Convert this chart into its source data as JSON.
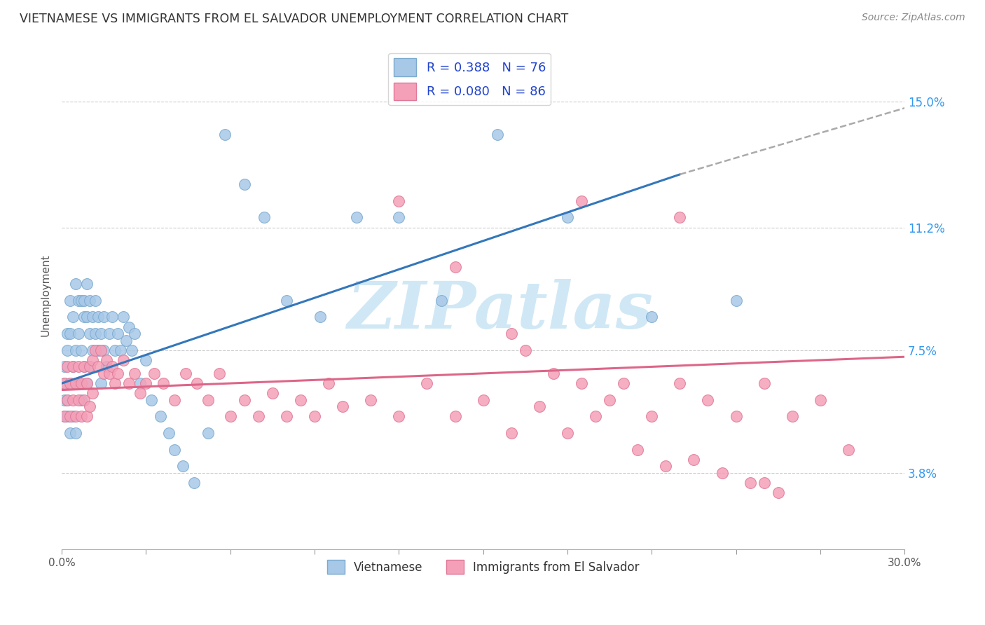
{
  "title": "VIETNAMESE VS IMMIGRANTS FROM EL SALVADOR UNEMPLOYMENT CORRELATION CHART",
  "source": "Source: ZipAtlas.com",
  "ylabel": "Unemployment",
  "ytick_labels": [
    "15.0%",
    "11.2%",
    "7.5%",
    "3.8%"
  ],
  "ytick_values": [
    0.15,
    0.112,
    0.075,
    0.038
  ],
  "xlim": [
    0.0,
    0.3
  ],
  "ylim": [
    0.015,
    0.168
  ],
  "legend_label1": "Vietnamese",
  "legend_label2": "Immigrants from El Salvador",
  "blue_color": "#a8c8e8",
  "pink_color": "#f4a0b8",
  "blue_edge_color": "#7aaace",
  "pink_edge_color": "#e07898",
  "blue_line_color": "#3377bb",
  "pink_line_color": "#dd6688",
  "trend_line_ext_color": "#aaaaaa",
  "watermark": "ZIPatlas",
  "watermark_color": "#d0e8f5",
  "grid_color": "#cccccc",
  "blue_R": 0.388,
  "blue_N": 76,
  "pink_R": 0.08,
  "pink_N": 86,
  "blue_line_x0": 0.0,
  "blue_line_y0": 0.065,
  "blue_line_x1": 0.22,
  "blue_line_y1": 0.128,
  "blue_line_ext_x1": 0.3,
  "blue_line_ext_y1": 0.148,
  "pink_line_x0": 0.0,
  "pink_line_y0": 0.063,
  "pink_line_x1": 0.3,
  "pink_line_y1": 0.073,
  "blue_points_x": [
    0.001,
    0.001,
    0.001,
    0.001,
    0.002,
    0.002,
    0.002,
    0.002,
    0.003,
    0.003,
    0.003,
    0.003,
    0.004,
    0.004,
    0.004,
    0.005,
    0.005,
    0.005,
    0.005,
    0.006,
    0.006,
    0.006,
    0.007,
    0.007,
    0.007,
    0.008,
    0.008,
    0.008,
    0.009,
    0.009,
    0.009,
    0.01,
    0.01,
    0.01,
    0.011,
    0.011,
    0.012,
    0.012,
    0.013,
    0.013,
    0.014,
    0.014,
    0.015,
    0.015,
    0.016,
    0.017,
    0.018,
    0.019,
    0.02,
    0.021,
    0.022,
    0.023,
    0.024,
    0.025,
    0.026,
    0.028,
    0.03,
    0.032,
    0.035,
    0.038,
    0.04,
    0.043,
    0.047,
    0.052,
    0.058,
    0.065,
    0.072,
    0.08,
    0.092,
    0.105,
    0.12,
    0.135,
    0.155,
    0.18,
    0.21,
    0.24
  ],
  "blue_points_y": [
    0.06,
    0.07,
    0.055,
    0.065,
    0.06,
    0.075,
    0.055,
    0.08,
    0.065,
    0.05,
    0.09,
    0.08,
    0.07,
    0.085,
    0.055,
    0.065,
    0.095,
    0.075,
    0.05,
    0.09,
    0.08,
    0.065,
    0.09,
    0.075,
    0.06,
    0.085,
    0.09,
    0.07,
    0.085,
    0.095,
    0.065,
    0.08,
    0.09,
    0.07,
    0.085,
    0.075,
    0.09,
    0.08,
    0.085,
    0.075,
    0.08,
    0.065,
    0.075,
    0.085,
    0.07,
    0.08,
    0.085,
    0.075,
    0.08,
    0.075,
    0.085,
    0.078,
    0.082,
    0.075,
    0.08,
    0.065,
    0.072,
    0.06,
    0.055,
    0.05,
    0.045,
    0.04,
    0.035,
    0.05,
    0.14,
    0.125,
    0.115,
    0.09,
    0.085,
    0.115,
    0.115,
    0.09,
    0.14,
    0.115,
    0.085,
    0.09
  ],
  "pink_points_x": [
    0.001,
    0.001,
    0.002,
    0.002,
    0.003,
    0.003,
    0.004,
    0.004,
    0.005,
    0.005,
    0.006,
    0.006,
    0.007,
    0.007,
    0.008,
    0.008,
    0.009,
    0.009,
    0.01,
    0.01,
    0.011,
    0.011,
    0.012,
    0.013,
    0.014,
    0.015,
    0.016,
    0.017,
    0.018,
    0.019,
    0.02,
    0.022,
    0.024,
    0.026,
    0.028,
    0.03,
    0.033,
    0.036,
    0.04,
    0.044,
    0.048,
    0.052,
    0.056,
    0.06,
    0.065,
    0.07,
    0.075,
    0.08,
    0.085,
    0.09,
    0.095,
    0.1,
    0.11,
    0.12,
    0.13,
    0.14,
    0.15,
    0.16,
    0.17,
    0.18,
    0.19,
    0.2,
    0.21,
    0.22,
    0.23,
    0.24,
    0.25,
    0.26,
    0.27,
    0.28,
    0.165,
    0.175,
    0.185,
    0.195,
    0.205,
    0.215,
    0.225,
    0.235,
    0.245,
    0.255,
    0.12,
    0.14,
    0.16,
    0.185,
    0.22,
    0.25
  ],
  "pink_points_y": [
    0.065,
    0.055,
    0.06,
    0.07,
    0.065,
    0.055,
    0.07,
    0.06,
    0.065,
    0.055,
    0.07,
    0.06,
    0.065,
    0.055,
    0.07,
    0.06,
    0.065,
    0.055,
    0.07,
    0.058,
    0.072,
    0.062,
    0.075,
    0.07,
    0.075,
    0.068,
    0.072,
    0.068,
    0.07,
    0.065,
    0.068,
    0.072,
    0.065,
    0.068,
    0.062,
    0.065,
    0.068,
    0.065,
    0.06,
    0.068,
    0.065,
    0.06,
    0.068,
    0.055,
    0.06,
    0.055,
    0.062,
    0.055,
    0.06,
    0.055,
    0.065,
    0.058,
    0.06,
    0.055,
    0.065,
    0.055,
    0.06,
    0.05,
    0.058,
    0.05,
    0.055,
    0.065,
    0.055,
    0.065,
    0.06,
    0.055,
    0.065,
    0.055,
    0.06,
    0.045,
    0.075,
    0.068,
    0.065,
    0.06,
    0.045,
    0.04,
    0.042,
    0.038,
    0.035,
    0.032,
    0.12,
    0.1,
    0.08,
    0.12,
    0.115,
    0.035
  ]
}
